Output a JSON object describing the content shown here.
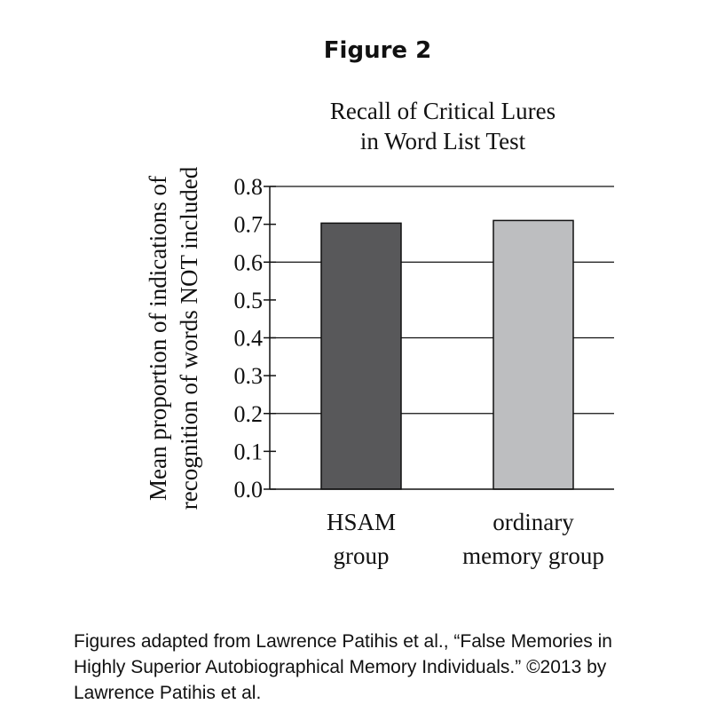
{
  "figure_label": "Figure 2",
  "chart_data": {
    "type": "bar",
    "title_lines": [
      "Recall of Critical Lures",
      "in Word List Test"
    ],
    "ylabel_lines": [
      "Mean proportion of indications of",
      "recognition of words NOT included"
    ],
    "categories": [
      {
        "lines": [
          "HSAM",
          "group"
        ]
      },
      {
        "lines": [
          "ordinary",
          "memory group"
        ]
      }
    ],
    "values": [
      0.703,
      0.71
    ],
    "colors": [
      "#58585a",
      "#bdbec0"
    ],
    "ylim": [
      0,
      0.8
    ],
    "yticks": [
      "0.0",
      "0.1",
      "0.2",
      "0.3",
      "0.4",
      "0.5",
      "0.6",
      "0.7",
      "0.8"
    ],
    "gridlines": [
      0.2,
      0.4,
      0.6,
      0.8
    ],
    "grid": true
  },
  "caption_lines": [
    "Figures adapted from Lawrence Patihis et al., “False Memories in",
    "Highly Superior Autobiographical Memory Individuals.” ©2013 by",
    "Lawrence Patihis et al."
  ]
}
